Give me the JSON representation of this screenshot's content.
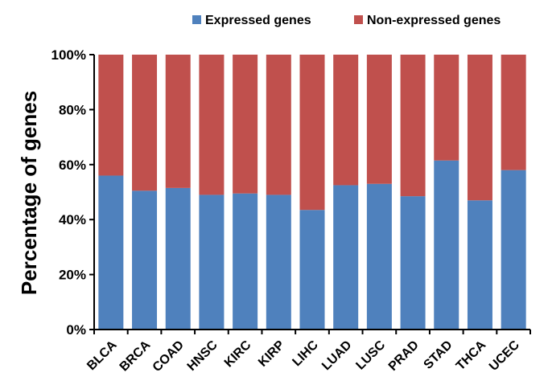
{
  "chart_data": {
    "type": "bar",
    "stacked": true,
    "categories": [
      "BLCA",
      "BRCA",
      "COAD",
      "HNSC",
      "KIRC",
      "KIRP",
      "LIHC",
      "LUAD",
      "LUSC",
      "PRAD",
      "STAD",
      "THCA",
      "UCEC"
    ],
    "series": [
      {
        "name": "Expressed genes",
        "color": "#4f81bd",
        "values": [
          56,
          50.5,
          51.5,
          49,
          49.5,
          49,
          43.5,
          52.5,
          53,
          48.5,
          61.5,
          47,
          58
        ]
      },
      {
        "name": "Non-expressed genes",
        "color": "#c0504d",
        "values": [
          44,
          49.5,
          48.5,
          51,
          50.5,
          51,
          56.5,
          47.5,
          47,
          51.5,
          38.5,
          53,
          42
        ]
      }
    ],
    "ylabel": "Percentage of genes",
    "ylim": [
      0,
      100
    ],
    "yticks": [
      "0%",
      "20%",
      "40%",
      "60%",
      "80%",
      "100%"
    ],
    "grid": false,
    "legend_position": "top"
  }
}
